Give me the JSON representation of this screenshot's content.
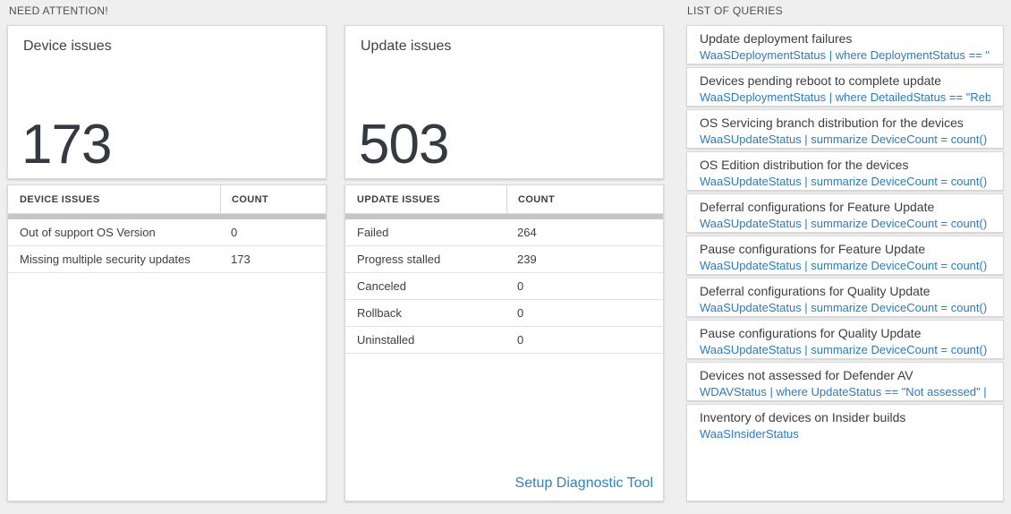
{
  "need_attention": {
    "label": "NEED ATTENTION!",
    "device_tile": {
      "title": "Device issues",
      "total": "173",
      "table": {
        "header_label": "DEVICE ISSUES",
        "header_count": "COUNT",
        "rows": [
          {
            "label": "Out of support OS Version",
            "count": "0"
          },
          {
            "label": "Missing multiple security updates",
            "count": "173"
          }
        ]
      }
    },
    "update_tile": {
      "title": "Update issues",
      "total": "503",
      "table": {
        "header_label": "UPDATE ISSUES",
        "header_count": "COUNT",
        "rows": [
          {
            "label": "Failed",
            "count": "264"
          },
          {
            "label": "Progress stalled",
            "count": "239"
          },
          {
            "label": "Canceled",
            "count": "0"
          },
          {
            "label": "Rollback",
            "count": "0"
          },
          {
            "label": "Uninstalled",
            "count": "0"
          }
        ]
      },
      "footer_link": "Setup Diagnostic Tool"
    }
  },
  "query_list": {
    "label": "LIST OF QUERIES",
    "items": [
      {
        "title": "Update deployment failures",
        "query": "WaaSDeploymentStatus | where DeploymentStatus == \"Failed\" |..."
      },
      {
        "title": "Devices pending reboot to complete update",
        "query": "WaaSDeploymentStatus | where DetailedStatus == \"Reboot pend..."
      },
      {
        "title": "OS Servicing branch distribution for the devices",
        "query": "WaaSUpdateStatus | summarize DeviceCount = count() by OSSer..."
      },
      {
        "title": "OS Edition distribution for the devices",
        "query": "WaaSUpdateStatus | summarize DeviceCount = count() by OSEdit..."
      },
      {
        "title": "Deferral configurations for Feature Update",
        "query": "WaaSUpdateStatus | summarize DeviceCount = count() by Featur..."
      },
      {
        "title": "Pause configurations for Feature Update",
        "query": "WaaSUpdateStatus | summarize DeviceCount = count() by Featur..."
      },
      {
        "title": "Deferral configurations for Quality Update",
        "query": "WaaSUpdateStatus | summarize DeviceCount = count() by Qualit..."
      },
      {
        "title": "Pause configurations for Quality Update",
        "query": "WaaSUpdateStatus | summarize DeviceCount = count() by Qualit..."
      },
      {
        "title": "Devices not assessed for Defender AV",
        "query": "WDAVStatus | where UpdateStatus == \"Not assessed\" | render ta..."
      },
      {
        "title": "Inventory of devices on Insider builds",
        "query": "WaaSInsiderStatus"
      }
    ]
  },
  "colors": {
    "query_link_blue": "#2b7bbd",
    "action_link_blue": "#2e83c4",
    "table_header_bar_gray": "#c3c7cb",
    "page_background": "#efefef"
  }
}
